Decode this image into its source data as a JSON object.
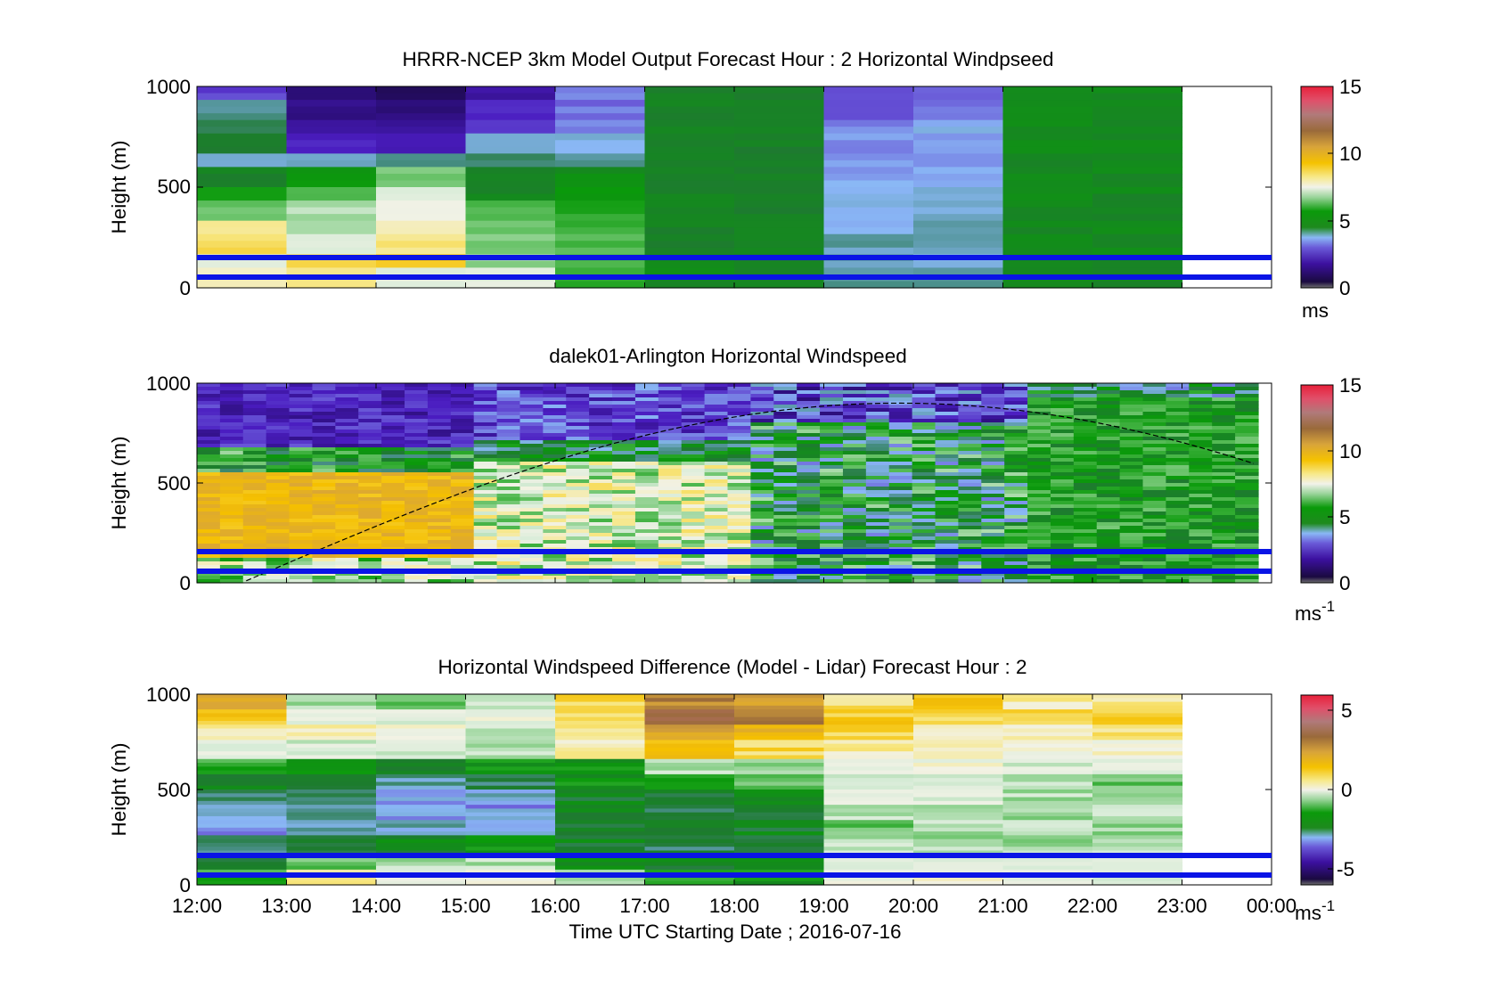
{
  "figure": {
    "xlabel": "Time UTC  Starting Date ; 2016-07-16",
    "x_tick_labels": [
      "12:00",
      "13:00",
      "14:00",
      "15:00",
      "16:00",
      "17:00",
      "18:00",
      "19:00",
      "20:00",
      "21:00",
      "22:00",
      "23:00",
      "00:00"
    ],
    "y_tick_labels": [
      "0",
      "500",
      "1000"
    ],
    "ylabel": "Height (m)"
  },
  "chart_data": [
    {
      "type": "heatmap",
      "title": "HRRR-NCEP 3km Model Output   Forecast Hour : 2 Horizontal Windpseed",
      "ylabel": "Height (m)",
      "xlim": [
        "12:00",
        "00:00"
      ],
      "ylim": [
        0,
        1000
      ],
      "colorbar": {
        "ticks": [
          "0",
          "5",
          "10",
          "15"
        ],
        "range": [
          0,
          15
        ],
        "unit": "ms"
      },
      "blue_lines_height_m": [
        50,
        150
      ],
      "data_end_hour": "23:00",
      "note_values": "hourly columns, colour approximates windspeed in m/s by height"
    },
    {
      "type": "heatmap",
      "title": "dalek01-Arlington  Horizontal Windspeed",
      "ylabel": "Height (m)",
      "xlim": [
        "12:00",
        "00:00"
      ],
      "ylim": [
        0,
        1000
      ],
      "colorbar": {
        "ticks": [
          "0",
          "5",
          "10",
          "15"
        ],
        "range": [
          0,
          15
        ],
        "unit": "ms",
        "unit_superscript": "-1"
      },
      "blue_lines_height_m": [
        50,
        150
      ],
      "dashed_curve": "boundary layer height estimate"
    },
    {
      "type": "heatmap",
      "title": "Horizontal Windspeed Difference (Model - Lidar) Forecast Hour : 2",
      "ylabel": "Height (m)",
      "xlim": [
        "12:00",
        "00:00"
      ],
      "ylim": [
        0,
        1000
      ],
      "colorbar": {
        "ticks": [
          "-5",
          "0",
          "5"
        ],
        "range": [
          -6,
          6
        ],
        "unit": "ms",
        "unit_superscript": "-1"
      },
      "blue_lines_height_m": [
        50,
        150
      ],
      "data_end_hour": "23:00"
    }
  ],
  "colors": {
    "blue_line": "#0a14e6",
    "cmap": [
      "#4a4a4a",
      "#1a0f50",
      "#3d12a6",
      "#6a3ad8",
      "#7f8ef0",
      "#8fbcf5",
      "#4a8a8a",
      "#0d8a0d",
      "#21a021",
      "#a8d8a8",
      "#f0f0e6",
      "#f8e070",
      "#f5c000",
      "#e0a020",
      "#a06a3a",
      "#c84a5a",
      "#e62a4a"
    ]
  }
}
